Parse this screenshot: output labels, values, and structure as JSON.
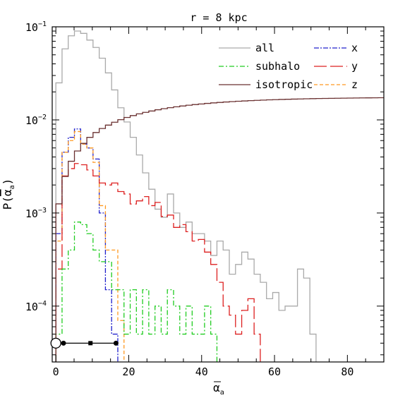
{
  "chart_data": {
    "type": "line",
    "title": "r = 8 kpc",
    "xlabel": "ᾱ_a",
    "ylabel": "P(ᾱ_a)",
    "xlim": [
      -1,
      90
    ],
    "ylim_log10": [
      -4.6,
      -1
    ],
    "y_scale": "log",
    "grid": false,
    "legend_position": "top-right",
    "x_ticks": [
      {
        "value": 0,
        "label": "0"
      },
      {
        "value": 20,
        "label": "20"
      },
      {
        "value": 40,
        "label": "40"
      },
      {
        "value": 60,
        "label": "60"
      },
      {
        "value": 80,
        "label": "80"
      }
    ],
    "y_ticks": [
      {
        "exp": -1,
        "label_base": "10",
        "label_exp": "−1"
      },
      {
        "exp": -2,
        "label_base": "10",
        "label_exp": "−2"
      },
      {
        "exp": -3,
        "label_base": "10",
        "label_exp": "−3"
      },
      {
        "exp": -4,
        "label_base": "10",
        "label_exp": "−4"
      }
    ],
    "bin_width": 1.7,
    "series": [
      {
        "name": "all",
        "color": "#aaaaaa",
        "dash": "",
        "edges": [
          0,
          1.7,
          3.4,
          5.1,
          6.8,
          8.5,
          10.2,
          11.9,
          13.6,
          15.3,
          17.0,
          18.7,
          20.4,
          22.1,
          23.8,
          25.5,
          27.2,
          28.9,
          30.6,
          32.3,
          34.0,
          35.7,
          37.4,
          39.1,
          40.8,
          42.5,
          44.2,
          45.9,
          47.6,
          49.3,
          51.0,
          52.7,
          54.4,
          56.1,
          57.8,
          59.5,
          61.2,
          62.9,
          64.6,
          66.3,
          68.0,
          69.7,
          71.4
        ],
        "values": [
          0.025,
          0.058,
          0.08,
          0.09,
          0.085,
          0.072,
          0.06,
          0.046,
          0.032,
          0.021,
          0.0135,
          0.0095,
          0.0065,
          0.0042,
          0.0027,
          0.0018,
          0.0011,
          0.0009,
          0.0016,
          0.001,
          0.0007,
          0.0008,
          0.0006,
          0.0006,
          0.0005,
          0.00035,
          0.0005,
          0.0004,
          0.00022,
          0.00028,
          0.00038,
          0.00032,
          0.00022,
          0.00018,
          0.00012,
          0.00014,
          9e-05,
          0.0001,
          0.0001,
          0.00025,
          0.0002,
          5e-05
        ]
      },
      {
        "name": "x",
        "color": "#2020cc",
        "dash": "7,2,2,2",
        "edges": [
          0,
          1.7,
          3.4,
          5.1,
          6.8,
          8.5,
          10.2,
          11.9,
          13.6,
          15.3,
          17.0
        ],
        "values": [
          0.0006,
          0.0045,
          0.0065,
          0.008,
          0.0055,
          0.005,
          0.0038,
          0.001,
          0.00015,
          5e-05
        ]
      },
      {
        "name": "z",
        "color": "#ff9920",
        "dash": "5,3",
        "edges": [
          0,
          1.7,
          3.4,
          5.1,
          6.8,
          8.5,
          10.2,
          11.9,
          13.6,
          15.3,
          17.0,
          18.7
        ],
        "values": [
          0.0005,
          0.0045,
          0.006,
          0.0075,
          0.0055,
          0.005,
          0.0035,
          0.0012,
          0.0004,
          0.0004,
          7e-05
        ]
      },
      {
        "name": "y",
        "color": "#dd2020",
        "dash": "18,5",
        "edges": [
          0,
          1.7,
          3.4,
          5.1,
          6.8,
          8.5,
          10.2,
          11.9,
          13.6,
          15.3,
          17.0,
          18.7,
          20.4,
          22.1,
          23.8,
          25.5,
          27.2,
          28.9,
          30.6,
          32.3,
          34.0,
          35.7,
          37.4,
          39.1,
          40.8,
          42.5,
          44.2,
          45.9,
          47.6,
          49.3,
          51.0,
          52.7,
          54.4,
          56.1
        ],
        "values": [
          0.00025,
          0.0025,
          0.003,
          0.0034,
          0.0033,
          0.0029,
          0.0025,
          0.0021,
          0.002,
          0.0021,
          0.0017,
          0.0016,
          0.00125,
          0.00135,
          0.0015,
          0.0012,
          0.0013,
          0.00092,
          0.00095,
          0.0007,
          0.00075,
          0.00063,
          0.0005,
          0.00052,
          0.00038,
          0.00028,
          0.00018,
          0.0001,
          8e-05,
          5e-05,
          9e-05,
          0.00012,
          5e-05
        ]
      },
      {
        "name": "subhalo",
        "color": "#20cc20",
        "dash": "7,3,2,3",
        "edges": [
          0,
          1.7,
          3.4,
          5.1,
          6.8,
          8.5,
          10.2,
          11.9,
          13.6,
          15.3,
          17.0,
          18.7,
          20.4,
          22.1,
          23.8,
          25.5,
          27.2,
          28.9,
          30.6,
          32.3,
          34.0,
          35.7,
          37.4,
          39.1,
          40.8,
          42.5,
          44.2
        ],
        "values": [
          5e-05,
          0.00025,
          0.0004,
          0.0008,
          0.00075,
          0.0006,
          0.0004,
          0.0003,
          0.0003,
          0.00015,
          0.00015,
          5e-05,
          0.00015,
          5e-05,
          0.00015,
          5e-05,
          0.0001,
          5e-05,
          0.00015,
          0.0001,
          5e-05,
          0.0001,
          5e-05,
          5e-05,
          0.0001,
          5e-05
        ]
      },
      {
        "name": "isotropic",
        "color": "#6a3030",
        "dash": "",
        "curve": "cumulative"
      }
    ],
    "legend_entries": [
      {
        "name": "all",
        "color": "#aaaaaa",
        "dash": ""
      },
      {
        "name": "x",
        "color": "#2020cc",
        "dash": "7,2,2,2"
      },
      {
        "name": "subhalo",
        "color": "#20cc20",
        "dash": "7,3,2,3"
      },
      {
        "name": "y",
        "color": "#dd2020",
        "dash": "18,5"
      },
      {
        "name": "isotropic",
        "color": "#6a3030",
        "dash": ""
      },
      {
        "name": "z",
        "color": "#ff9920",
        "dash": "5,3"
      }
    ],
    "error_bar": {
      "y_value": 4e-05,
      "x_min": 0,
      "x_max": 16.5,
      "points": [
        2.1,
        9.5,
        16.5
      ],
      "open_circle_x": 0
    }
  }
}
